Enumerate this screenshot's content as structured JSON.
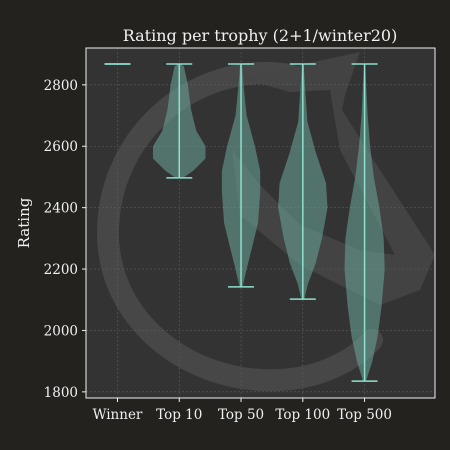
{
  "chart_data": {
    "type": "violin",
    "title": "Rating per trophy (2+1/winter20)",
    "xlabel": "",
    "ylabel": "Rating",
    "ylim": [
      1780,
      2920
    ],
    "yticks": [
      1800,
      2000,
      2200,
      2400,
      2600,
      2800
    ],
    "grid": true,
    "categories": [
      "Winner",
      "Top 10",
      "Top 50",
      "Top 100",
      "Top 500"
    ],
    "series": [
      {
        "category": "Winner",
        "min": 2868,
        "max": 2868,
        "density": []
      },
      {
        "category": "Top 10",
        "min": 2497,
        "max": 2868,
        "density": [
          [
            2497,
            0.12
          ],
          [
            2520,
            0.45
          ],
          [
            2560,
            0.85
          ],
          [
            2600,
            0.85
          ],
          [
            2650,
            0.55
          ],
          [
            2720,
            0.38
          ],
          [
            2800,
            0.28
          ],
          [
            2860,
            0.15
          ],
          [
            2868,
            0.05
          ]
        ]
      },
      {
        "category": "Top 50",
        "min": 2142,
        "max": 2868,
        "density": [
          [
            2142,
            0.05
          ],
          [
            2200,
            0.18
          ],
          [
            2280,
            0.38
          ],
          [
            2350,
            0.55
          ],
          [
            2450,
            0.62
          ],
          [
            2520,
            0.62
          ],
          [
            2600,
            0.45
          ],
          [
            2700,
            0.18
          ],
          [
            2800,
            0.08
          ],
          [
            2868,
            0.03
          ]
        ]
      },
      {
        "category": "Top 100",
        "min": 2102,
        "max": 2868,
        "density": [
          [
            2102,
            0.05
          ],
          [
            2150,
            0.16
          ],
          [
            2220,
            0.42
          ],
          [
            2300,
            0.62
          ],
          [
            2400,
            0.8
          ],
          [
            2480,
            0.75
          ],
          [
            2580,
            0.42
          ],
          [
            2680,
            0.15
          ],
          [
            2780,
            0.08
          ],
          [
            2868,
            0.03
          ]
        ]
      },
      {
        "category": "Top 500",
        "min": 1835,
        "max": 2868,
        "density": [
          [
            1835,
            0.05
          ],
          [
            1900,
            0.25
          ],
          [
            1980,
            0.42
          ],
          [
            2080,
            0.55
          ],
          [
            2200,
            0.65
          ],
          [
            2300,
            0.62
          ],
          [
            2400,
            0.48
          ],
          [
            2500,
            0.3
          ],
          [
            2600,
            0.18
          ],
          [
            2700,
            0.1
          ],
          [
            2800,
            0.05
          ],
          [
            2868,
            0.02
          ]
        ]
      }
    ]
  },
  "colors": {
    "background": "#23221e",
    "plot_background": "#333333",
    "grid": "#5c5c5c",
    "violin_fill": "#6aa89a",
    "line": "#8ee0cf",
    "text": "#f0f0f0",
    "watermark": "#474747"
  }
}
